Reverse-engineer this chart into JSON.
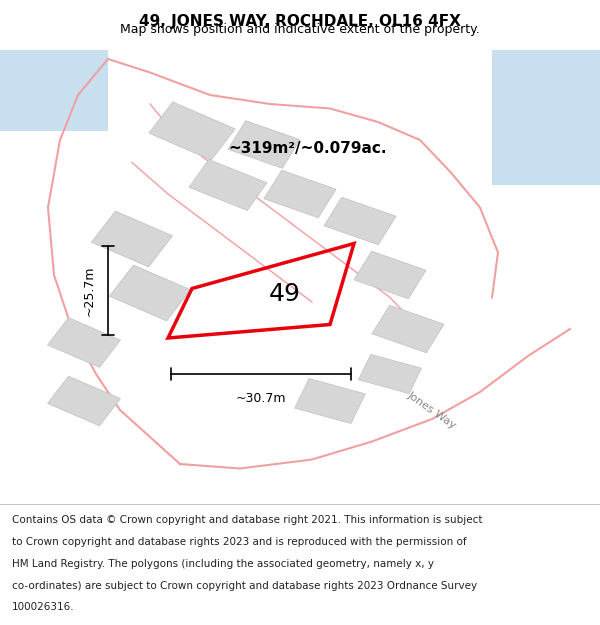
{
  "title": "49, JONES WAY, ROCHDALE, OL16 4FX",
  "subtitle": "Map shows position and indicative extent of the property.",
  "footnote": "Contains OS data © Crown copyright and database right 2021. This information is subject to Crown copyright and database rights 2023 and is reproduced with the permission of HM Land Registry. The polygons (including the associated geometry, namely x, y co-ordinates) are subject to Crown copyright and database rights 2023 Ordnance Survey 100026316.",
  "area_label": "~319m²/~0.079ac.",
  "number_label": "49",
  "dim_width": "~30.7m",
  "dim_height": "~25.7m",
  "road_label": "Jones Way",
  "bg_color": "#f5f5f5",
  "map_bg": "#ffffff",
  "plot_color_red": "#e8000d",
  "plot_fill": "#ffffff",
  "road_bg": "#e8e8e8",
  "building_fill": "#d6d6d6",
  "building_edge": "#c0c0c0",
  "road_line_color": "#f0a0a0",
  "water_color": "#c8dff0",
  "title_fontsize": 11,
  "subtitle_fontsize": 9,
  "footnote_fontsize": 7.5
}
